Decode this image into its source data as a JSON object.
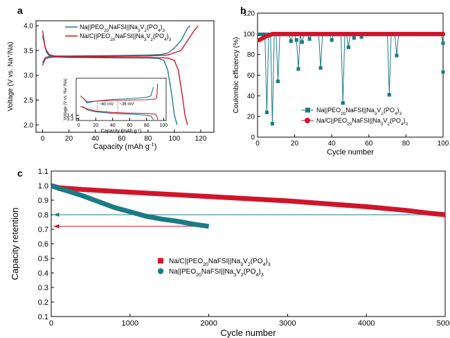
{
  "colors": {
    "na": "#1b7b85",
    "nac": "#d0152a",
    "axis": "#000000"
  },
  "chart_data": [
    {
      "panel": "a",
      "type": "line",
      "xlabel": "Capacity (mAh g",
      "xlabel_sup": "-1",
      "xlabel_end": ")",
      "ylabel": "Voltage (V vs. Na",
      "ylabel_sup": "+",
      "ylabel_end": "/Na)",
      "xlim": [
        -5,
        130
      ],
      "ylim": [
        1.85,
        4.1
      ],
      "xticks": [
        0,
        20,
        40,
        60,
        80,
        100,
        120
      ],
      "yticks": [
        2.0,
        2.5,
        3.0,
        3.5,
        4.0
      ],
      "ytick_labels": [
        "2.0",
        "2.5",
        "3.0",
        "3.5",
        "4.0"
      ],
      "legend": [
        {
          "pre": "Na||PEO",
          "s1": "20",
          "mid": "NaFSI||Na",
          "s2": "3",
          "mid2": "V",
          "s3": "2",
          "mid3": "(PO",
          "s4": "4",
          "post": ")",
          "s5": "3",
          "color": "na"
        },
        {
          "pre": "Na/C||PEO",
          "s1": "20",
          "mid": "NaFSI||Na",
          "s2": "3",
          "mid2": "V",
          "s3": "2",
          "mid3": "(PO",
          "s4": "4",
          "post": ")",
          "s5": "3",
          "color": "nac"
        }
      ],
      "series": [
        {
          "key": "na",
          "part": "charge",
          "x": [
            0,
            2,
            5,
            10,
            20,
            40,
            60,
            80,
            90,
            95,
            100,
            105,
            108,
            110,
            112
          ],
          "y": [
            3.25,
            3.36,
            3.38,
            3.39,
            3.39,
            3.395,
            3.4,
            3.41,
            3.42,
            3.45,
            3.55,
            3.7,
            3.85,
            3.95,
            4.0
          ]
        },
        {
          "key": "na",
          "part": "discharge",
          "x": [
            0,
            3,
            5,
            10,
            20,
            40,
            60,
            80,
            88,
            92,
            95,
            98,
            100,
            102
          ],
          "y": [
            3.8,
            3.46,
            3.4,
            3.37,
            3.36,
            3.355,
            3.35,
            3.35,
            3.34,
            3.3,
            3.1,
            2.6,
            2.2,
            2.0
          ]
        },
        {
          "key": "nac",
          "part": "charge",
          "x": [
            0,
            2,
            5,
            10,
            20,
            40,
            60,
            80,
            95,
            105,
            110,
            115,
            118
          ],
          "y": [
            3.2,
            3.33,
            3.36,
            3.37,
            3.375,
            3.38,
            3.385,
            3.39,
            3.41,
            3.5,
            3.7,
            3.9,
            4.0
          ]
        },
        {
          "key": "nac",
          "part": "discharge",
          "x": [
            0,
            2,
            5,
            10,
            20,
            40,
            60,
            80,
            95,
            100,
            103,
            106,
            108,
            110
          ],
          "y": [
            3.9,
            3.55,
            3.42,
            3.38,
            3.37,
            3.365,
            3.36,
            3.36,
            3.35,
            3.3,
            3.1,
            2.6,
            2.2,
            2.0
          ]
        }
      ],
      "inset": {
        "xlabel": "Capacity (mAh g",
        "xlabel_sup": "-1",
        "xlabel_end": ")",
        "ylabel": "Voltage (V vs. Na",
        "ylabel_sup": "+",
        "ylabel_end": "/Na)",
        "xlim": [
          -3,
          103
        ],
        "ylim": [
          3.25,
          4.45
        ],
        "xticks": [
          0,
          20,
          40,
          60,
          80,
          100
        ],
        "yticks": [
          3.3,
          3.4
        ],
        "ytick_labels": [
          "3.3",
          "3.4"
        ],
        "annotation_na": "~60 mV",
        "annotation_nac": "~36 mV"
      }
    },
    {
      "panel": "b",
      "type": "scatter",
      "xlabel": "Cycle number",
      "ylabel": "Coulombic efficiency (%)",
      "xlim": [
        0,
        100
      ],
      "ylim": [
        0,
        120
      ],
      "xticks": [
        0,
        20,
        40,
        60,
        80,
        100
      ],
      "yticks": [
        0,
        20,
        40,
        60,
        80,
        100,
        120
      ],
      "legend": [
        {
          "pre": "Na||PEO",
          "s1": "20",
          "mid": "NaFSI||Na",
          "s2": "3",
          "mid2": "V",
          "s3": "2",
          "mid3": "(PO",
          "s4": "4",
          "post": ")",
          "s5": "3",
          "color": "na",
          "marker": "square"
        },
        {
          "pre": "Na/C||PEO",
          "s1": "20",
          "mid": "NaFSI||Na",
          "s2": "3",
          "mid2": "V",
          "s3": "2",
          "mid3": "(PO",
          "s4": "4",
          "post": ")",
          "s5": "3",
          "color": "nac",
          "marker": "circle"
        }
      ],
      "na_dips": [
        {
          "x": 5,
          "y": 24
        },
        {
          "x": 8,
          "y": 13
        },
        {
          "x": 11,
          "y": 54
        },
        {
          "x": 18,
          "y": 93
        },
        {
          "x": 21,
          "y": 94
        },
        {
          "x": 22,
          "y": 66
        },
        {
          "x": 24,
          "y": 92
        },
        {
          "x": 28,
          "y": 95
        },
        {
          "x": 34,
          "y": 67
        },
        {
          "x": 40,
          "y": 94
        },
        {
          "x": 46,
          "y": 33
        },
        {
          "x": 49,
          "y": 87
        },
        {
          "x": 52,
          "y": 96
        },
        {
          "x": 56,
          "y": 97
        },
        {
          "x": 71,
          "y": 41
        },
        {
          "x": 75,
          "y": 79
        },
        {
          "x": 100,
          "y": 91
        },
        {
          "x": 100,
          "y": 63
        }
      ],
      "na_baseline": 99.5,
      "nac_baseline": 99.8,
      "nac_initial": [
        {
          "x": 1,
          "y": 94
        },
        {
          "x": 2,
          "y": 95
        },
        {
          "x": 3,
          "y": 96
        },
        {
          "x": 4,
          "y": 97
        },
        {
          "x": 5,
          "y": 98
        },
        {
          "x": 6,
          "y": 98.5
        },
        {
          "x": 7,
          "y": 99
        }
      ]
    },
    {
      "panel": "c",
      "type": "line",
      "xlabel": "Cycle number",
      "ylabel": "Capacity retention",
      "xlim": [
        0,
        5000
      ],
      "ylim": [
        0.1,
        1.1
      ],
      "xticks": [
        0,
        1000,
        2000,
        3000,
        4000,
        5000
      ],
      "yticks": [
        0.1,
        0.2,
        0.3,
        0.4,
        0.5,
        0.6,
        0.7,
        0.8,
        0.9,
        1.0,
        1.1
      ],
      "ytick_labels": [
        "0.1",
        "0.2",
        "0.3",
        "0.4",
        "0.5",
        "0.6",
        "0.7",
        "0.8",
        "0.9",
        "1.0",
        "1.1"
      ],
      "legend": [
        {
          "pre": "Na/C||PEO",
          "s1": "20",
          "mid": "NaFSI||Na",
          "s2": "3",
          "mid2": "V",
          "s3": "2",
          "mid3": "(PO",
          "s4": "4",
          "post": ")",
          "s5": "3",
          "color": "nac",
          "marker": "square"
        },
        {
          "pre": "Na||PEO",
          "s1": "20",
          "mid": "NaFSI||Na",
          "s2": "3",
          "mid2": "V",
          "s3": "2",
          "mid3": "(PO",
          "s4": "4",
          "post": ")",
          "s5": "3",
          "color": "na",
          "marker": "circle"
        }
      ],
      "series": [
        {
          "key": "nac",
          "x": [
            0,
            100,
            500,
            1000,
            1500,
            2000,
            2500,
            3000,
            3500,
            4000,
            4500,
            4800,
            5000
          ],
          "y": [
            1.0,
            0.985,
            0.97,
            0.955,
            0.94,
            0.925,
            0.91,
            0.895,
            0.875,
            0.855,
            0.83,
            0.81,
            0.8
          ]
        },
        {
          "key": "na",
          "x": [
            0,
            50,
            100,
            200,
            400,
            600,
            800,
            1000,
            1200,
            1400,
            1600,
            1700,
            1800,
            2000
          ],
          "y": [
            1.0,
            0.99,
            0.98,
            0.965,
            0.93,
            0.89,
            0.85,
            0.82,
            0.79,
            0.77,
            0.755,
            0.745,
            0.735,
            0.72
          ]
        }
      ],
      "reference_lines": [
        {
          "y": 0.8,
          "color": "na"
        },
        {
          "y": 0.72,
          "color": "nac"
        }
      ]
    }
  ]
}
